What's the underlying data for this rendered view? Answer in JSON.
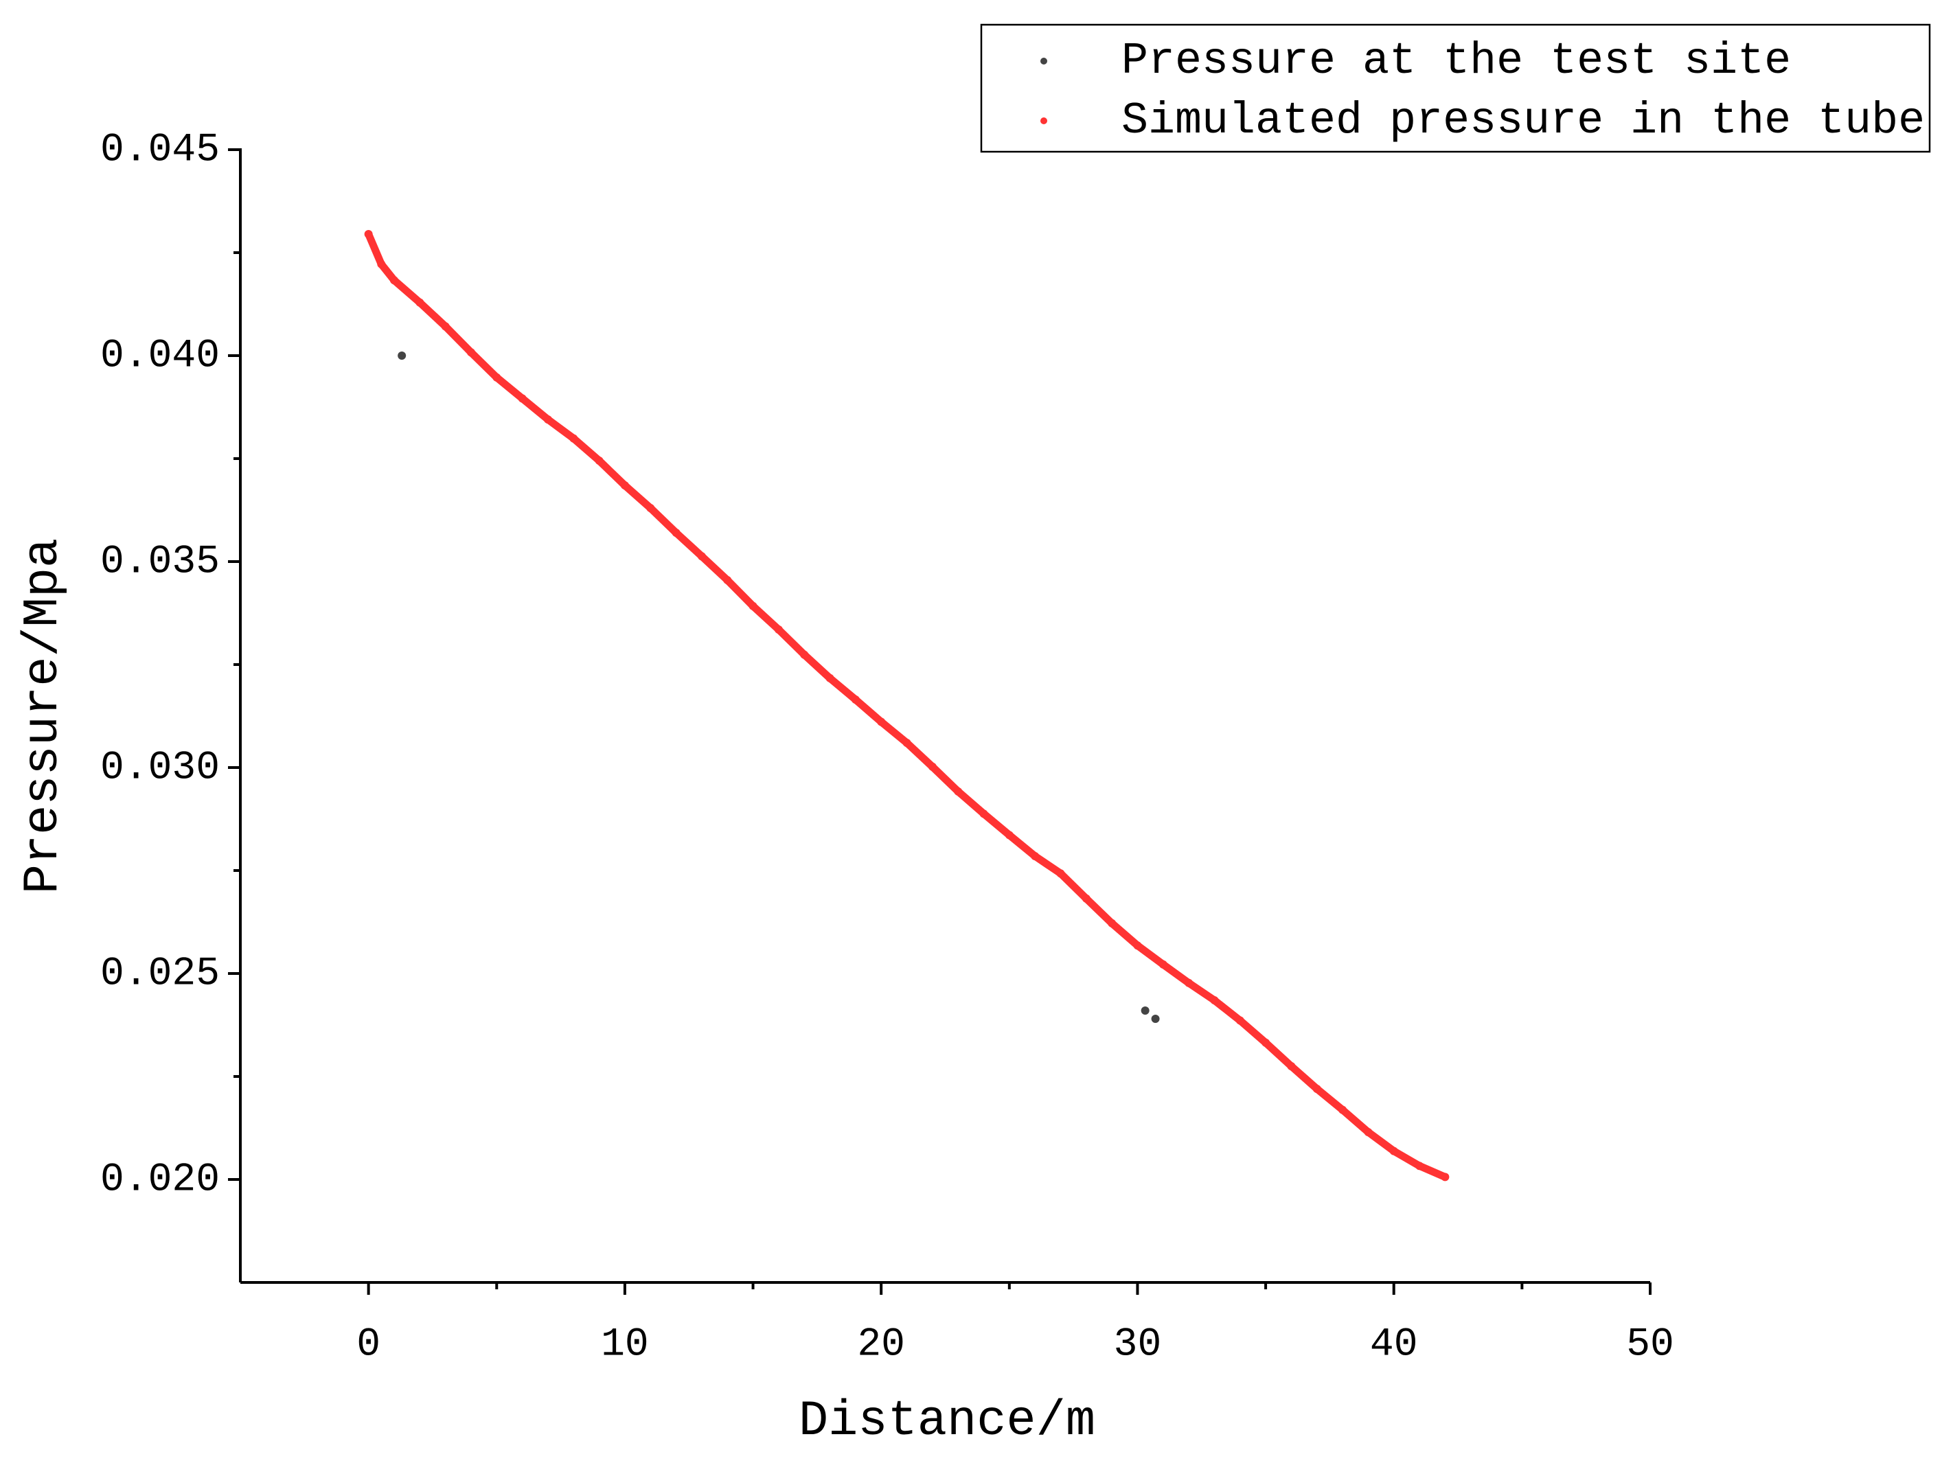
{
  "chart_data": {
    "type": "scatter",
    "x_label": "Distance/m",
    "y_label": "Pressure/Mpa",
    "xlim": [
      -5,
      50
    ],
    "xticks": [
      0,
      10,
      20,
      30,
      40,
      50
    ],
    "ylim": [
      0.0175,
      0.045
    ],
    "yticks": [
      {
        "value": 0.02,
        "label": "0.020"
      },
      0.025,
      {
        "value": 0.03,
        "label": "0.030"
      },
      0.035,
      {
        "value": 0.04,
        "label": "0.040"
      },
      0.045
    ],
    "legend": "top-right",
    "series": [
      {
        "name": "Pressure at the test site",
        "color": "#444444",
        "x": [
          1.3,
          30.3,
          30.7
        ],
        "values": [
          0.04,
          0.0241,
          0.0239
        ]
      },
      {
        "name": "Simulated pressure in the tube",
        "color": "#ff3333",
        "x": [
          0,
          0.5,
          1,
          2,
          3,
          4,
          5,
          6,
          7,
          8,
          9,
          10,
          11,
          12,
          13,
          14,
          15,
          16,
          17,
          18,
          19,
          20,
          21,
          22,
          23,
          24,
          25,
          26,
          27,
          28,
          29,
          30,
          31,
          32,
          33,
          34,
          35,
          36,
          37,
          38,
          39,
          40,
          41,
          42
        ],
        "values": [
          0.04295,
          0.04222,
          0.04183,
          0.04129,
          0.04071,
          0.04008,
          0.03947,
          0.03896,
          0.03845,
          0.03799,
          0.03745,
          0.03685,
          0.0363,
          0.0357,
          0.03513,
          0.03455,
          0.03392,
          0.03335,
          0.03274,
          0.03217,
          0.03165,
          0.03111,
          0.0306,
          0.03002,
          0.02942,
          0.02888,
          0.02836,
          0.02785,
          0.02743,
          0.02682,
          0.02622,
          0.02568,
          0.02522,
          0.02477,
          0.02435,
          0.02386,
          0.02332,
          0.02275,
          0.0222,
          0.02169,
          0.02115,
          0.02069,
          0.02033,
          0.02006
        ]
      }
    ]
  }
}
